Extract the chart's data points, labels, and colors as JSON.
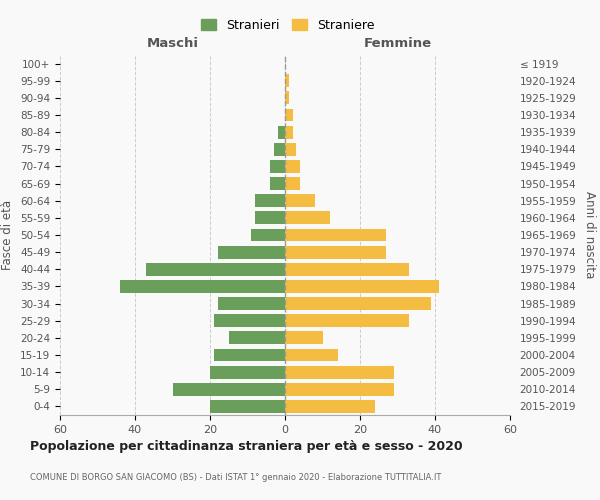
{
  "age_groups_bottom_to_top": [
    "0-4",
    "5-9",
    "10-14",
    "15-19",
    "20-24",
    "25-29",
    "30-34",
    "35-39",
    "40-44",
    "45-49",
    "50-54",
    "55-59",
    "60-64",
    "65-69",
    "70-74",
    "75-79",
    "80-84",
    "85-89",
    "90-94",
    "95-99",
    "100+"
  ],
  "birth_years_bottom_to_top": [
    "2015-2019",
    "2010-2014",
    "2005-2009",
    "2000-2004",
    "1995-1999",
    "1990-1994",
    "1985-1989",
    "1980-1984",
    "1975-1979",
    "1970-1974",
    "1965-1969",
    "1960-1964",
    "1955-1959",
    "1950-1954",
    "1945-1949",
    "1940-1944",
    "1935-1939",
    "1930-1934",
    "1925-1929",
    "1920-1924",
    "≤ 1919"
  ],
  "maschi_bottom_to_top": [
    20,
    30,
    20,
    19,
    15,
    19,
    18,
    44,
    37,
    18,
    9,
    8,
    8,
    4,
    4,
    3,
    2,
    0,
    0,
    0,
    0
  ],
  "femmine_bottom_to_top": [
    24,
    29,
    29,
    14,
    10,
    33,
    39,
    41,
    33,
    27,
    27,
    12,
    8,
    4,
    4,
    3,
    2,
    2,
    1,
    1,
    0
  ],
  "color_maschi": "#6a9e5b",
  "color_femmine": "#f5bc42",
  "title": "Popolazione per cittadinanza straniera per età e sesso - 2020",
  "subtitle": "COMUNE DI BORGO SAN GIACOMO (BS) - Dati ISTAT 1° gennaio 2020 - Elaborazione TUTTITALIA.IT",
  "xlabel_left": "Maschi",
  "xlabel_right": "Femmine",
  "ylabel_left": "Fasce di età",
  "ylabel_right": "Anni di nascita",
  "legend_maschi": "Stranieri",
  "legend_femmine": "Straniere",
  "xlim": 60,
  "background_color": "#f9f9f9",
  "grid_color": "#cccccc"
}
